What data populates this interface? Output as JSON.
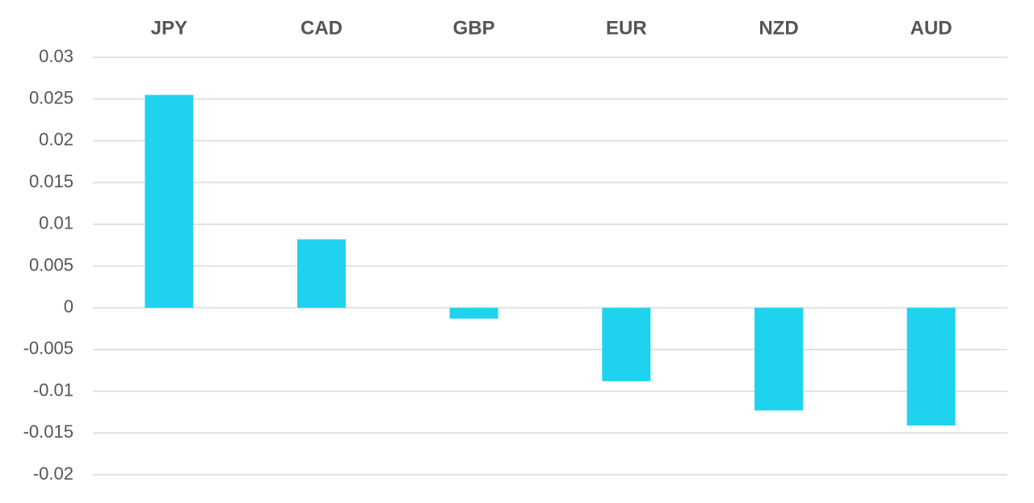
{
  "chart_data": {
    "type": "bar",
    "categories": [
      "JPY",
      "CAD",
      "GBP",
      "EUR",
      "NZD",
      "AUD"
    ],
    "values": [
      0.0255,
      0.0082,
      -0.0013,
      -0.0088,
      -0.0123,
      -0.0141
    ],
    "color": "#1fd3ef",
    "ylim": [
      -0.02,
      0.03
    ],
    "yticks": [
      0.03,
      0.025,
      0.02,
      0.015,
      0.01,
      0.005,
      0,
      -0.005,
      -0.01,
      -0.015,
      -0.02
    ],
    "grid": true
  }
}
